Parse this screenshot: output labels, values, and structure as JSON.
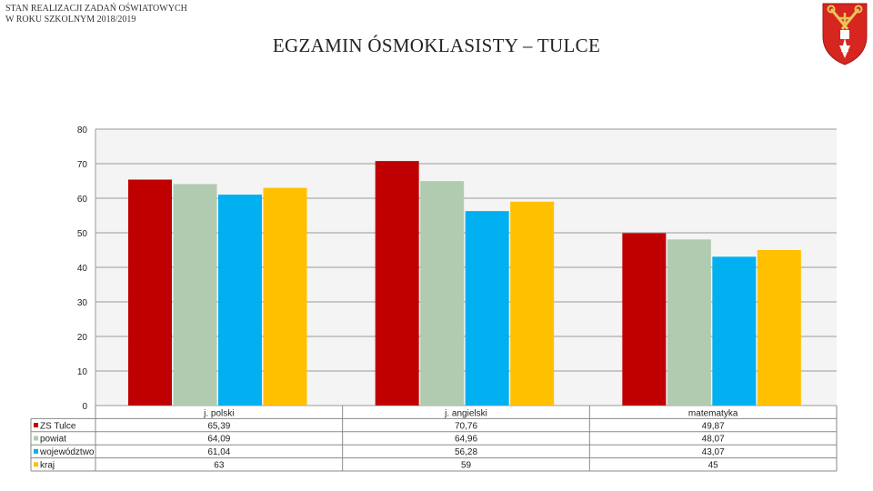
{
  "header": {
    "line1": "STAN REALIZACJI ZADAŃ OŚWIATOWYCH",
    "line2": "W ROKU SZKOLNYM 2018/2019",
    "title": "EGZAMIN ÓSMOKLASISTY – TULCE"
  },
  "emblem": {
    "icon": "coat-of-arms-icon",
    "colors": {
      "field": "#d7251f",
      "charge": "#ffffff",
      "key": "#e8c65a"
    }
  },
  "chart_data": {
    "type": "bar",
    "categories": [
      "j. polski",
      "j. angielski",
      "matematyka"
    ],
    "series": [
      {
        "name": "ZS Tulce",
        "color": "#c00000",
        "values": [
          65.39,
          70.76,
          49.87
        ],
        "labels": [
          "65,39",
          "70,76",
          "49,87"
        ]
      },
      {
        "name": "powiat",
        "color": "#b1cbb1",
        "values": [
          64.09,
          64.96,
          48.07
        ],
        "labels": [
          "64,09",
          "64,96",
          "48,07"
        ]
      },
      {
        "name": "województwo",
        "color": "#00b0f0",
        "values": [
          61.04,
          56.28,
          43.07
        ],
        "labels": [
          "61,04",
          "56,28",
          "43,07"
        ]
      },
      {
        "name": "kraj",
        "color": "#ffc000",
        "values": [
          63,
          59,
          45
        ],
        "labels": [
          "63",
          "59",
          "45"
        ]
      }
    ],
    "ylim": [
      0,
      80
    ],
    "yticks": [
      0,
      10,
      20,
      30,
      40,
      50,
      60,
      70,
      80
    ],
    "grid": true,
    "legend": "data-table-below"
  }
}
